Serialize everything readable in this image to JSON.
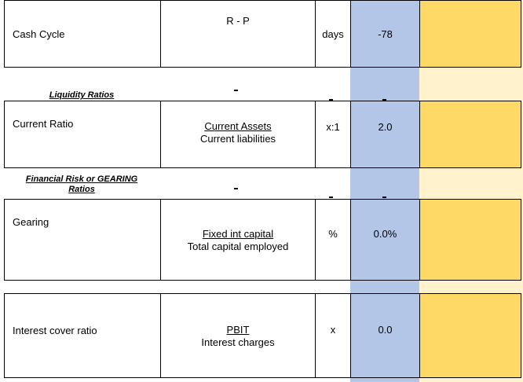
{
  "rows": [
    {
      "label": "Cash Cycle",
      "formula_top": "R - P",
      "formula_bottom": "",
      "unit": "days",
      "value": "-78"
    },
    {
      "label": "Current Ratio",
      "formula_top": "Current Assets",
      "formula_bottom": "Current liabilities",
      "unit": "x:1",
      "value": "2.0"
    },
    {
      "label": "Gearing",
      "formula_top": "Fixed int capital",
      "formula_bottom": "Total capital employed",
      "unit": "%",
      "value": "0.0%"
    },
    {
      "label": "Interest cover ratio",
      "formula_top": "PBIT",
      "formula_bottom": "Interest charges",
      "unit": "x",
      "value": "0.0"
    }
  ],
  "sections": {
    "liquidity": "Liquidity Ratios",
    "gearing_line1": "Financial Risk or GEARING",
    "gearing_line2": "Ratios"
  },
  "colors": {
    "value_column": "#b4c6e7",
    "input_column": "#ffd966",
    "input_band": "#fff2cc"
  }
}
